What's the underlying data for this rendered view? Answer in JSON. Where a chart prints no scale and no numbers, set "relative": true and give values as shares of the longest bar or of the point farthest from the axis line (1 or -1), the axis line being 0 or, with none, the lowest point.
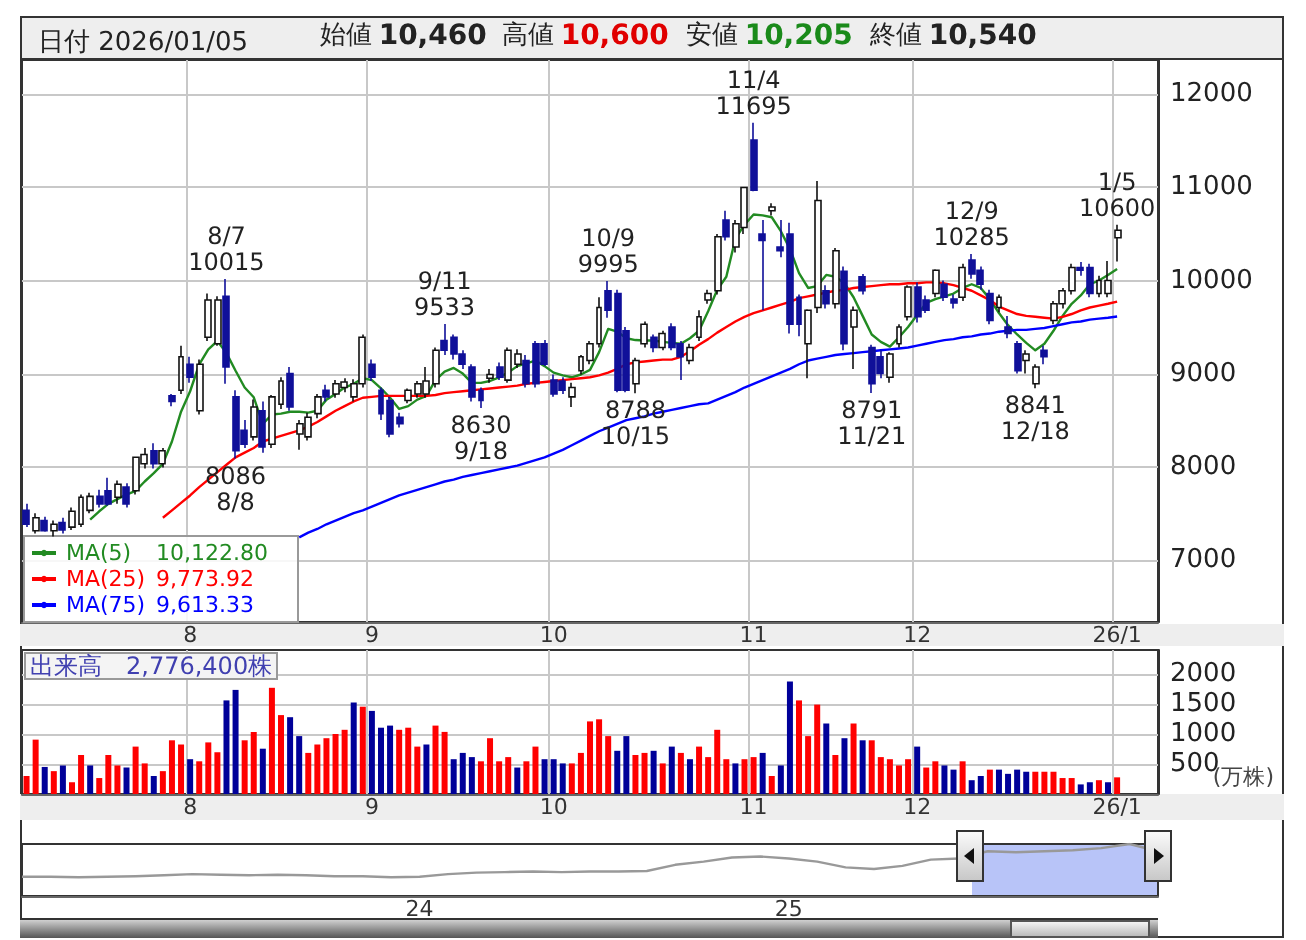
{
  "chart_data": [
    {
      "type": "candlestick",
      "title": "日付 2026/01/05",
      "annotations": [
        "始値 10,460",
        "高値 10,600",
        "安値 10,205",
        "終値 10,540",
        {
          "text": "8/7\n10015",
          "y": 10015
        },
        {
          "text": "8086\n8/8",
          "y": 8086
        },
        {
          "text": "9/11\n9533",
          "y": 9533
        },
        {
          "text": "8630\n9/18",
          "y": 8630
        },
        {
          "text": "10/9\n9995",
          "y": 9995
        },
        {
          "text": "8788\n10/15",
          "y": 8788
        },
        {
          "text": "11/4\n11695",
          "y": 11695
        },
        {
          "text": "8791\n11/21",
          "y": 8791
        },
        {
          "text": "12/9\n10285",
          "y": 10285
        },
        {
          "text": "8841\n12/18",
          "y": 8841
        },
        {
          "text": "1/5\n10600",
          "y": 10600
        },
        "10,122.80",
        "9,773.92",
        "9,613.33"
      ],
      "categories": [
        null,
        null,
        null,
        null,
        null,
        null,
        null,
        null,
        null,
        null,
        null,
        null,
        null,
        null,
        null,
        null,
        null,
        null,
        "8",
        null,
        null,
        null,
        null,
        null,
        null,
        null,
        null,
        null,
        null,
        null,
        null,
        null,
        null,
        null,
        null,
        null,
        null,
        null,
        "9",
        null,
        null,
        null,
        null,
        null,
        null,
        null,
        null,
        null,
        null,
        null,
        null,
        null,
        null,
        null,
        null,
        null,
        null,
        null,
        "10",
        null,
        null,
        null,
        null,
        null,
        null,
        null,
        null,
        null,
        null,
        null,
        null,
        null,
        null,
        null,
        null,
        null,
        null,
        null,
        null,
        null,
        "11",
        null,
        null,
        null,
        null,
        null,
        null,
        null,
        null,
        null,
        null,
        null,
        null,
        null,
        null,
        null,
        null,
        null,
        "12",
        null,
        null,
        null,
        null,
        null,
        null,
        null,
        null,
        null,
        null,
        null,
        null,
        null,
        null,
        null,
        null,
        null,
        null,
        null,
        null,
        null,
        "26/1"
      ],
      "ohlc": [
        [
          7530,
          7600,
          7350,
          7380
        ],
        [
          7310,
          7500,
          7280,
          7450
        ],
        [
          7420,
          7460,
          7300,
          7310
        ],
        [
          7310,
          7420,
          7250,
          7380
        ],
        [
          7400,
          7450,
          7280,
          7320
        ],
        [
          7350,
          7560,
          7320,
          7520
        ],
        [
          7380,
          7700,
          7350,
          7670
        ],
        [
          7530,
          7720,
          7500,
          7680
        ],
        [
          7680,
          7750,
          7560,
          7600
        ],
        [
          7740,
          7880,
          7580,
          7600
        ],
        [
          7670,
          7850,
          7600,
          7810
        ],
        [
          7780,
          7820,
          7560,
          7600
        ],
        [
          7740,
          8100,
          7700,
          8100
        ],
        [
          8030,
          8200,
          7980,
          8130
        ],
        [
          8170,
          8250,
          7980,
          8030
        ],
        [
          8030,
          8200,
          7990,
          8170
        ],
        [
          8760,
          8780,
          8650,
          8700
        ],
        [
          8820,
          9300,
          8780,
          9180
        ],
        [
          9100,
          9180,
          8900,
          8960
        ],
        [
          8600,
          9150,
          8560,
          9100
        ],
        [
          9390,
          9860,
          9350,
          9790
        ],
        [
          9320,
          9830,
          9300,
          9790
        ],
        [
          9830,
          10015,
          8890,
          9070
        ],
        [
          8750,
          8820,
          8086,
          8170
        ],
        [
          8390,
          8500,
          8200,
          8240
        ],
        [
          8320,
          8720,
          8280,
          8640
        ],
        [
          8600,
          8700,
          8150,
          8210
        ],
        [
          8240,
          8770,
          8200,
          8750
        ],
        [
          8670,
          8960,
          8620,
          8920
        ],
        [
          9000,
          9070,
          8600,
          8640
        ],
        [
          8350,
          8500,
          8180,
          8460
        ],
        [
          8320,
          8580,
          8280,
          8530
        ],
        [
          8570,
          8780,
          8520,
          8750
        ],
        [
          8820,
          8880,
          8700,
          8750
        ],
        [
          8780,
          8930,
          8740,
          8890
        ],
        [
          8850,
          8950,
          8800,
          8910
        ],
        [
          8750,
          8940,
          8700,
          8890
        ],
        [
          8890,
          9420,
          8850,
          9390
        ],
        [
          9100,
          9150,
          8920,
          8960
        ],
        [
          8820,
          8850,
          8500,
          8570
        ],
        [
          8710,
          8750,
          8315,
          8350
        ],
        [
          8530,
          8580,
          8420,
          8460
        ],
        [
          8710,
          8840,
          8680,
          8820
        ],
        [
          8780,
          8920,
          8740,
          8890
        ],
        [
          8780,
          9070,
          8740,
          8920
        ],
        [
          8890,
          9280,
          8850,
          9250
        ],
        [
          9355,
          9533,
          9200,
          9250
        ],
        [
          9390,
          9420,
          9150,
          9210
        ],
        [
          9210,
          9250,
          9050,
          9100
        ],
        [
          9070,
          9100,
          8700,
          8750
        ],
        [
          8820,
          8850,
          8630,
          8710
        ],
        [
          8950,
          9050,
          8900,
          8990
        ],
        [
          9070,
          9120,
          8930,
          8960
        ],
        [
          8930,
          9280,
          8900,
          9250
        ],
        [
          9100,
          9260,
          9060,
          9210
        ],
        [
          9140,
          9200,
          8850,
          8890
        ],
        [
          9320,
          9350,
          8850,
          8890
        ],
        [
          9320,
          9360,
          9080,
          9100
        ],
        [
          8930,
          8990,
          8750,
          8780
        ],
        [
          8920,
          8960,
          8780,
          8820
        ],
        [
          8750,
          8900,
          8640,
          8850
        ],
        [
          9030,
          9200,
          8990,
          9180
        ],
        [
          9140,
          9350,
          9100,
          9320
        ],
        [
          9320,
          9820,
          9280,
          9710
        ],
        [
          9890,
          9995,
          9600,
          9680
        ],
        [
          9860,
          9900,
          8800,
          8820
        ],
        [
          9460,
          9500,
          8800,
          8820
        ],
        [
          8890,
          9170,
          8788,
          9140
        ],
        [
          9320,
          9560,
          9280,
          9530
        ],
        [
          9390,
          9420,
          9230,
          9280
        ],
        [
          9280,
          9460,
          9250,
          9430
        ],
        [
          9500,
          9540,
          9250,
          9280
        ],
        [
          9320,
          9350,
          8930,
          9180
        ],
        [
          9140,
          9320,
          9100,
          9280
        ],
        [
          9390,
          9680,
          9350,
          9610
        ],
        [
          9790,
          9900,
          9750,
          9860
        ],
        [
          9890,
          10500,
          9850,
          10470
        ],
        [
          10650,
          10750,
          10430,
          10470
        ],
        [
          10360,
          10650,
          10300,
          10610
        ],
        [
          10570,
          11000,
          10500,
          11000
        ],
        [
          11510,
          11695,
          10960,
          10970
        ],
        [
          10500,
          10650,
          9680,
          10430
        ],
        [
          10750,
          10830,
          10700,
          10790
        ],
        [
          10360,
          10650,
          10250,
          10320
        ],
        [
          10500,
          10620,
          9430,
          9530
        ],
        [
          9820,
          9850,
          9400,
          9530
        ],
        [
          9320,
          9690,
          8950,
          9680
        ],
        [
          9710,
          11070,
          9650,
          10860
        ],
        [
          9890,
          9950,
          9700,
          9750
        ],
        [
          9750,
          10350,
          9700,
          10320
        ],
        [
          10100,
          10150,
          9250,
          9320
        ],
        [
          9500,
          9720,
          9050,
          9680
        ],
        [
          10040,
          10070,
          9850,
          9890
        ],
        [
          9280,
          9310,
          8791,
          8890
        ],
        [
          9180,
          9250,
          8950,
          9000
        ],
        [
          8960,
          9230,
          8900,
          9210
        ],
        [
          9320,
          9530,
          9280,
          9500
        ],
        [
          9610,
          9950,
          9570,
          9930
        ],
        [
          9930,
          9980,
          9550,
          9610
        ],
        [
          9790,
          9840,
          9650,
          9680
        ],
        [
          9860,
          10120,
          9820,
          10110
        ],
        [
          9960,
          10000,
          9780,
          9820
        ],
        [
          9800,
          9850,
          9700,
          9760
        ],
        [
          9820,
          10180,
          9780,
          10140
        ],
        [
          10220,
          10285,
          10020,
          10070
        ],
        [
          10110,
          10150,
          9900,
          9960
        ],
        [
          9860,
          9900,
          9530,
          9570
        ],
        [
          9710,
          9850,
          9660,
          9820
        ],
        [
          9500,
          9620,
          9380,
          9430
        ],
        [
          9320,
          9350,
          9000,
          9030
        ],
        [
          9140,
          9250,
          9000,
          9210
        ],
        [
          8890,
          9100,
          8841,
          9070
        ],
        [
          9250,
          9300,
          9100,
          9180
        ],
        [
          9570,
          9780,
          9530,
          9750
        ],
        [
          9750,
          9920,
          9700,
          9890
        ],
        [
          9890,
          10180,
          9850,
          10140
        ],
        [
          10140,
          10200,
          10050,
          10110
        ],
        [
          10140,
          10180,
          9820,
          9860
        ],
        [
          9860,
          10050,
          9820,
          10000
        ],
        [
          9860,
          10210,
          9820,
          10000
        ],
        [
          10460,
          10600,
          10205,
          10540
        ]
      ],
      "series": [
        {
          "name": "MA(5)",
          "type": "line",
          "color": "#228b22",
          "values": [
            null,
            null,
            null,
            null,
            null,
            null,
            null,
            7430,
            7520,
            7600,
            7650,
            7700,
            7740,
            7840,
            7930,
            8030,
            8270,
            8590,
            8810,
            9100,
            9260,
            9350,
            9220,
            9030,
            8850,
            8745,
            8460,
            8560,
            8570,
            8590,
            8590,
            8580,
            8600,
            8720,
            8780,
            8850,
            8890,
            8950,
            8930,
            8840,
            8740,
            8620,
            8650,
            8720,
            8760,
            8930,
            9020,
            9060,
            9000,
            8900,
            8900,
            8920,
            8960,
            9010,
            9080,
            9110,
            9140,
            9080,
            9010,
            8980,
            8960,
            8990,
            9040,
            9230,
            9480,
            9450,
            9380,
            9360,
            9355,
            9355,
            9340,
            9330,
            9320,
            9380,
            9460,
            9670,
            9900,
            10040,
            10450,
            10600,
            10710,
            10700,
            10680,
            10530,
            10340,
            10080,
            9920,
            9940,
            10060,
            10040,
            9970,
            9820,
            9620,
            9420,
            9340,
            9290,
            9390,
            9500,
            9630,
            9760,
            9800,
            9830,
            9860,
            9920,
            9960,
            9920,
            9800,
            9650,
            9520,
            9420,
            9330,
            9250,
            9320,
            9460,
            9620,
            9750,
            9840,
            9960,
            10000,
            10060,
            10122.8
          ]
        },
        {
          "name": "MA(25)",
          "type": "line",
          "color": "#ff0000",
          "values": [
            null,
            null,
            null,
            null,
            null,
            null,
            null,
            null,
            null,
            null,
            null,
            null,
            null,
            null,
            null,
            7450,
            7530,
            7610,
            7690,
            7780,
            7860,
            7940,
            8020,
            8100,
            8150,
            8200,
            8270,
            8300,
            8330,
            8360,
            8390,
            8430,
            8480,
            8540,
            8600,
            8650,
            8700,
            8740,
            8750,
            8760,
            8760,
            8760,
            8760,
            8760,
            8760,
            8770,
            8790,
            8800,
            8810,
            8820,
            8830,
            8840,
            8850,
            8860,
            8870,
            8890,
            8900,
            8910,
            8920,
            8930,
            8940,
            8950,
            8960,
            8980,
            9010,
            9050,
            9100,
            9120,
            9130,
            9140,
            9150,
            9150,
            9180,
            9240,
            9310,
            9370,
            9440,
            9500,
            9560,
            9610,
            9650,
            9680,
            9710,
            9740,
            9770,
            9810,
            9830,
            9850,
            9870,
            9890,
            9900,
            9920,
            9930,
            9940,
            9950,
            9960,
            9960,
            9970,
            9970,
            9980,
            9980,
            9970,
            9950,
            9920,
            9890,
            9840,
            9790,
            9720,
            9680,
            9640,
            9620,
            9610,
            9600,
            9590,
            9610,
            9640,
            9680,
            9710,
            9730,
            9750,
            9773.92
          ]
        },
        {
          "name": "MA(75)",
          "type": "line",
          "color": "#0000ff",
          "values": [
            null,
            null,
            null,
            null,
            null,
            null,
            null,
            null,
            null,
            null,
            null,
            null,
            null,
            null,
            null,
            null,
            null,
            null,
            null,
            null,
            null,
            null,
            null,
            null,
            null,
            null,
            null,
            null,
            null,
            null,
            7240,
            7290,
            7330,
            7380,
            7420,
            7460,
            7500,
            7530,
            7570,
            7610,
            7650,
            7690,
            7720,
            7750,
            7780,
            7810,
            7840,
            7860,
            7890,
            7910,
            7930,
            7950,
            7970,
            7990,
            8010,
            8040,
            8070,
            8100,
            8140,
            8180,
            8230,
            8280,
            8330,
            8380,
            8420,
            8460,
            8500,
            8520,
            8540,
            8570,
            8590,
            8610,
            8630,
            8650,
            8670,
            8680,
            8720,
            8760,
            8800,
            8850,
            8890,
            8930,
            8970,
            9010,
            9050,
            9100,
            9140,
            9160,
            9180,
            9200,
            9210,
            9220,
            9230,
            9240,
            9250,
            9260,
            9270,
            9280,
            9300,
            9320,
            9340,
            9360,
            9370,
            9390,
            9400,
            9420,
            9430,
            9450,
            9460,
            9470,
            9470,
            9480,
            9490,
            9510,
            9530,
            9550,
            9560,
            9580,
            9590,
            9600,
            9613.33
          ]
        }
      ],
      "ylim": [
        6330,
        12370
      ],
      "yticks": [
        7000,
        8000,
        9000,
        10000,
        11000,
        12000
      ],
      "grid": true,
      "legend": "bottom left",
      "marker": "none"
    },
    {
      "type": "bar",
      "title": "出来高　2,776,400株",
      "ylabel": "(万株)",
      "categories": [
        null,
        null,
        null,
        null,
        null,
        null,
        null,
        null,
        null,
        null,
        null,
        null,
        null,
        null,
        null,
        null,
        null,
        null,
        "8",
        null,
        null,
        null,
        null,
        null,
        null,
        null,
        null,
        null,
        null,
        null,
        null,
        null,
        null,
        null,
        null,
        null,
        null,
        null,
        "9",
        null,
        null,
        null,
        null,
        null,
        null,
        null,
        null,
        null,
        null,
        null,
        null,
        null,
        null,
        null,
        null,
        null,
        null,
        null,
        "10",
        null,
        null,
        null,
        null,
        null,
        null,
        null,
        null,
        null,
        null,
        null,
        null,
        null,
        null,
        null,
        null,
        null,
        null,
        null,
        null,
        null,
        "11",
        null,
        null,
        null,
        null,
        null,
        null,
        null,
        null,
        null,
        null,
        null,
        null,
        null,
        null,
        null,
        null,
        null,
        "12",
        null,
        null,
        null,
        null,
        null,
        null,
        null,
        null,
        null,
        null,
        null,
        null,
        null,
        null,
        null,
        null,
        null,
        null,
        null,
        null,
        null,
        "26/1"
      ],
      "values": [
        300,
        906,
        451,
        381,
        476,
        196,
        650,
        476,
        266,
        650,
        476,
        441,
        790,
        510,
        300,
        381,
        895,
        825,
        580,
        545,
        860,
        696,
        1560,
        1735,
        895,
        1035,
        755,
        1770,
        1315,
        1280,
        965,
        685,
        825,
        930,
        1000,
        1070,
        1525,
        1455,
        1385,
        1105,
        1140,
        1070,
        1105,
        790,
        825,
        1140,
        1035,
        580,
        685,
        615,
        545,
        930,
        545,
        615,
        441,
        545,
        790,
        580,
        580,
        510,
        510,
        685,
        1210,
        1245,
        965,
        720,
        965,
        650,
        685,
        720,
        510,
        790,
        685,
        580,
        790,
        615,
        1070,
        580,
        510,
        580,
        615,
        685,
        300,
        476,
        1875,
        1560,
        965,
        1490,
        1175,
        650,
        930,
        1175,
        895,
        895,
        615,
        580,
        476,
        580,
        790,
        441,
        545,
        476,
        406,
        545,
        230,
        300,
        406,
        406,
        336,
        406,
        371,
        371,
        371,
        371,
        266,
        266,
        160,
        196,
        230,
        196,
        277.64
      ],
      "colors": [
        "#ff0000",
        "#ff0000",
        "#000099",
        "#ff0000",
        "#000099",
        "#ff0000",
        "#ff0000",
        "#000099",
        "#ff0000",
        "#ff0000",
        "#ff0000",
        "#000099",
        "#ff0000",
        "#ff0000",
        "#000099",
        "#ff0000",
        "#ff0000",
        "#ff0000",
        "#000099",
        "#ff0000",
        "#ff0000",
        "#ff0000",
        "#000099",
        "#000099",
        "#ff0000",
        "#ff0000",
        "#000099",
        "#ff0000",
        "#ff0000",
        "#000099",
        "#000099",
        "#ff0000",
        "#ff0000",
        "#ff0000",
        "#ff0000",
        "#ff0000",
        "#000099",
        "#ff0000",
        "#000099",
        "#000099",
        "#000099",
        "#ff0000",
        "#ff0000",
        "#ff0000",
        "#000099",
        "#ff0000",
        "#ff0000",
        "#000099",
        "#000099",
        "#000099",
        "#ff0000",
        "#ff0000",
        "#ff0000",
        "#ff0000",
        "#000099",
        "#ff0000",
        "#ff0000",
        "#000099",
        "#000099",
        "#000099",
        "#ff0000",
        "#ff0000",
        "#ff0000",
        "#ff0000",
        "#ff0000",
        "#000099",
        "#000099",
        "#ff0000",
        "#ff0000",
        "#000099",
        "#ff0000",
        "#000099",
        "#ff0000",
        "#000099",
        "#ff0000",
        "#ff0000",
        "#ff0000",
        "#ff0000",
        "#000099",
        "#ff0000",
        "#ff0000",
        "#000099",
        "#ff0000",
        "#000099",
        "#000099",
        "#ff0000",
        "#ff0000",
        "#ff0000",
        "#000099",
        "#ff0000",
        "#000099",
        "#ff0000",
        "#000099",
        "#ff0000",
        "#ff0000",
        "#ff0000",
        "#ff0000",
        "#ff0000",
        "#000099",
        "#ff0000",
        "#ff0000",
        "#000099",
        "#000099",
        "#ff0000",
        "#000099",
        "#000099",
        "#ff0000",
        "#000099",
        "#000099",
        "#000099",
        "#000099",
        "#ff0000",
        "#ff0000",
        "#ff0000",
        "#ff0000",
        "#ff0000",
        "#000099",
        "#000099",
        "#ff0000",
        "#000099",
        "#ff0000"
      ],
      "ylim": [
        0,
        2400
      ],
      "yticks": [
        500,
        1000,
        1500,
        2000
      ],
      "grid": true
    },
    {
      "type": "line",
      "relative": true,
      "color": "#999999",
      "marker": "none",
      "categories": [
        null,
        null,
        null,
        null,
        null,
        null,
        null,
        null,
        null,
        null,
        null,
        null,
        null,
        null,
        "24",
        null,
        null,
        null,
        null,
        null,
        null,
        null,
        null,
        null,
        null,
        null,
        null,
        "25",
        null,
        null,
        null,
        null,
        null,
        null,
        null,
        null,
        null,
        null,
        null,
        null,
        null
      ],
      "values": [
        0.37,
        0.37,
        0.36,
        0.37,
        0.38,
        0.4,
        0.42,
        0.41,
        0.4,
        0.41,
        0.4,
        0.38,
        0.38,
        0.36,
        0.37,
        0.42,
        0.45,
        0.46,
        0.47,
        0.46,
        0.47,
        0.47,
        0.48,
        0.6,
        0.66,
        0.74,
        0.76,
        0.72,
        0.66,
        0.55,
        0.52,
        0.58,
        0.7,
        0.72,
        0.86,
        0.84,
        0.86,
        0.88,
        0.92,
        1.0,
        0.86
      ]
    }
  ]
}
